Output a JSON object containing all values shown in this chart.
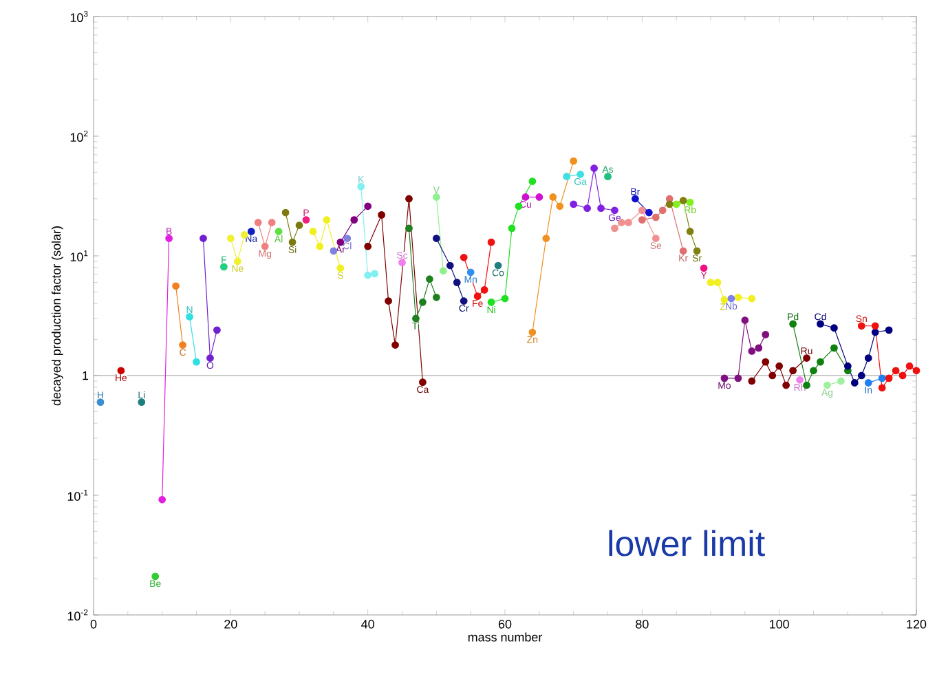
{
  "chart_data": {
    "type": "line",
    "xlabel": "mass number",
    "ylabel": "decayed production factor (solar)",
    "xlim": [
      0,
      120
    ],
    "xticks": [
      0,
      20,
      40,
      60,
      80,
      100,
      120
    ],
    "ylim": [
      0.01,
      1000
    ],
    "yticks": [
      {
        "value": 0.01,
        "label": "10$^{-2}$"
      },
      {
        "value": 0.1,
        "label": "10$^{-1}$"
      },
      1,
      {
        "value": 10,
        "label": "10$^{1}$"
      },
      {
        "value": 100,
        "label": "10$^{2}$"
      },
      {
        "value": 1000,
        "label": "10$^{3}$"
      }
    ],
    "log": true,
    "marker": "circle",
    "ref_lines": [
      {
        "axis": "y",
        "value": 1,
        "color": "#b0b0b0"
      }
    ],
    "annotations": [
      "lower limit"
    ],
    "series": [
      {
        "name": "H",
        "color": "#3a8fd0",
        "x": [
          1
        ],
        "values": [
          0.6
        ]
      },
      {
        "name": "He",
        "color": "#cc0000",
        "x": [
          4
        ],
        "values": [
          1.1
        ]
      },
      {
        "name": "Li",
        "color": "#1f7f7f",
        "x": [
          7
        ],
        "values": [
          0.6
        ]
      },
      {
        "name": "Be",
        "color": "#33cc33",
        "x": [
          9
        ],
        "values": [
          0.021
        ]
      },
      {
        "name": "B",
        "color": "#e020e0",
        "x": [
          10,
          11
        ],
        "values": [
          0.092,
          14
        ]
      },
      {
        "name": "C",
        "color": "#f08020",
        "x": [
          12,
          13
        ],
        "values": [
          5.6,
          1.8
        ]
      },
      {
        "name": "N",
        "color": "#30e0e0",
        "x": [
          14,
          15
        ],
        "values": [
          3.1,
          1.3
        ]
      },
      {
        "name": "O",
        "color": "#7020d0",
        "x": [
          16,
          17,
          18
        ],
        "values": [
          14,
          1.4,
          2.4
        ]
      },
      {
        "name": "F",
        "color": "#20d080",
        "x": [
          19
        ],
        "values": [
          8.1
        ]
      },
      {
        "name": "Ne",
        "color": "#f0f030",
        "x": [
          20,
          21,
          22
        ],
        "values": [
          14,
          9,
          15
        ]
      },
      {
        "name": "Na",
        "color": "#1020c0",
        "x": [
          23
        ],
        "values": [
          16
        ]
      },
      {
        "name": "Mg",
        "color": "#f08080",
        "x": [
          24,
          25,
          26
        ],
        "values": [
          19,
          12,
          19
        ]
      },
      {
        "name": "Al",
        "color": "#60e040",
        "x": [
          27
        ],
        "values": [
          16
        ]
      },
      {
        "name": "Si",
        "color": "#7a7a10",
        "x": [
          28,
          29,
          30
        ],
        "values": [
          23,
          13,
          18
        ]
      },
      {
        "name": "P",
        "color": "#f02080",
        "x": [
          31
        ],
        "values": [
          20
        ]
      },
      {
        "name": "S",
        "color": "#f0f020",
        "x": [
          32,
          33,
          34,
          36
        ],
        "values": [
          16,
          12,
          20,
          7.9
        ]
      },
      {
        "name": "Cl",
        "color": "#8080e0",
        "x": [
          35,
          37
        ],
        "values": [
          11,
          14
        ]
      },
      {
        "name": "Ar",
        "color": "#800080",
        "x": [
          36,
          38,
          40
        ],
        "values": [
          13,
          20,
          26
        ]
      },
      {
        "name": "K",
        "color": "#80f0f0",
        "x": [
          39,
          40,
          41
        ],
        "values": [
          38,
          6.9,
          7.1
        ]
      },
      {
        "name": "Ca",
        "color": "#800000",
        "x": [
          40,
          42,
          43,
          44,
          46,
          48
        ],
        "values": [
          12,
          22,
          4.2,
          1.8,
          30,
          0.88
        ]
      },
      {
        "name": "Sc",
        "color": "#f080f0",
        "x": [
          45
        ],
        "values": [
          8.8
        ]
      },
      {
        "name": "Ti",
        "color": "#208020",
        "x": [
          46,
          47,
          48,
          49,
          50
        ],
        "values": [
          17,
          3.0,
          4.1,
          6.4,
          4.5
        ]
      },
      {
        "name": "V",
        "color": "#90f090",
        "x": [
          50,
          51
        ],
        "values": [
          31,
          7.5
        ]
      },
      {
        "name": "Cr",
        "color": "#101080",
        "x": [
          50,
          52,
          53,
          54
        ],
        "values": [
          14,
          8.3,
          6.0,
          4.2
        ]
      },
      {
        "name": "Mn",
        "color": "#3090f0",
        "x": [
          55
        ],
        "values": [
          7.3
        ]
      },
      {
        "name": "Fe",
        "color": "#f01010",
        "x": [
          54,
          56,
          57,
          58
        ],
        "values": [
          9.7,
          4.6,
          5.2,
          13
        ]
      },
      {
        "name": "Co",
        "color": "#208080",
        "x": [
          59
        ],
        "values": [
          8.3
        ]
      },
      {
        "name": "Ni",
        "color": "#20e020",
        "x": [
          58,
          60,
          61,
          62,
          64
        ],
        "values": [
          4.1,
          4.4,
          17,
          26,
          42
        ]
      },
      {
        "name": "Cu",
        "color": "#d010d0",
        "x": [
          63,
          65
        ],
        "values": [
          31,
          31
        ]
      },
      {
        "name": "Zn",
        "color": "#f09020",
        "x": [
          64,
          66,
          67,
          68,
          70
        ],
        "values": [
          2.3,
          14,
          31,
          26,
          62
        ]
      },
      {
        "name": "Ga",
        "color": "#40e0e0",
        "x": [
          69,
          71
        ],
        "values": [
          46,
          48
        ]
      },
      {
        "name": "Ge",
        "color": "#8020e0",
        "x": [
          70,
          72,
          73,
          74,
          76
        ],
        "values": [
          27,
          25,
          54,
          25,
          24
        ]
      },
      {
        "name": "As",
        "color": "#20c080",
        "x": [
          75
        ],
        "values": [
          46
        ]
      },
      {
        "name": "Se",
        "color": "#f09090",
        "x": [
          76,
          77,
          78,
          80,
          82
        ],
        "values": [
          17,
          19,
          19,
          24,
          14
        ]
      },
      {
        "name": "Br",
        "color": "#1010d0",
        "x": [
          79,
          81
        ],
        "values": [
          30,
          23
        ]
      },
      {
        "name": "Kr",
        "color": "#e07070",
        "x": [
          80,
          82,
          83,
          84,
          86
        ],
        "values": [
          20,
          21,
          24,
          30,
          11
        ]
      },
      {
        "name": "Rb",
        "color": "#80f020",
        "x": [
          85,
          87
        ],
        "values": [
          27,
          28
        ]
      },
      {
        "name": "Sr",
        "color": "#808010",
        "x": [
          84,
          86,
          87,
          88
        ],
        "values": [
          27,
          29,
          16,
          11
        ]
      },
      {
        "name": "Y",
        "color": "#f01080",
        "x": [
          89
        ],
        "values": [
          7.9
        ]
      },
      {
        "name": "Zr",
        "color": "#f0f020",
        "x": [
          90,
          91,
          92,
          94,
          96
        ],
        "values": [
          6.0,
          6.0,
          4.3,
          4.5,
          4.4
        ]
      },
      {
        "name": "Nb",
        "color": "#8080f0",
        "x": [
          93
        ],
        "values": [
          4.4
        ]
      },
      {
        "name": "Mo",
        "color": "#801080",
        "x": [
          92,
          94,
          95,
          96,
          97,
          98
        ],
        "values": [
          0.95,
          0.95,
          2.9,
          1.6,
          1.7,
          2.2
        ]
      },
      {
        "name": "Ru",
        "color": "#800000",
        "x": [
          96,
          98,
          99,
          100,
          101,
          102,
          104
        ],
        "values": [
          0.9,
          1.3,
          1.0,
          1.2,
          0.83,
          1.1,
          1.4
        ]
      },
      {
        "name": "Rh",
        "color": "#f080f0",
        "x": [
          103
        ],
        "values": [
          0.92
        ]
      },
      {
        "name": "Pd",
        "color": "#108010",
        "x": [
          102,
          104,
          105,
          106,
          108,
          110
        ],
        "values": [
          2.7,
          0.83,
          1.1,
          1.3,
          1.7,
          1.1
        ]
      },
      {
        "name": "Ag",
        "color": "#a0f0a0",
        "x": [
          107,
          109
        ],
        "values": [
          0.83,
          0.9
        ]
      },
      {
        "name": "Cd",
        "color": "#000080",
        "x": [
          106,
          108,
          110,
          111,
          112,
          113,
          114,
          116
        ],
        "values": [
          2.7,
          2.5,
          1.2,
          0.87,
          1.0,
          1.4,
          2.3,
          2.4
        ]
      },
      {
        "name": "In",
        "color": "#2080f0",
        "x": [
          113,
          115
        ],
        "values": [
          0.87,
          0.95
        ]
      },
      {
        "name": "Sn",
        "color": "#f01010",
        "x": [
          112,
          114,
          115,
          116,
          117,
          118,
          119,
          120
        ],
        "values": [
          2.6,
          2.6,
          0.79,
          0.95,
          1.1,
          1.0,
          1.2,
          1.1
        ]
      }
    ]
  }
}
